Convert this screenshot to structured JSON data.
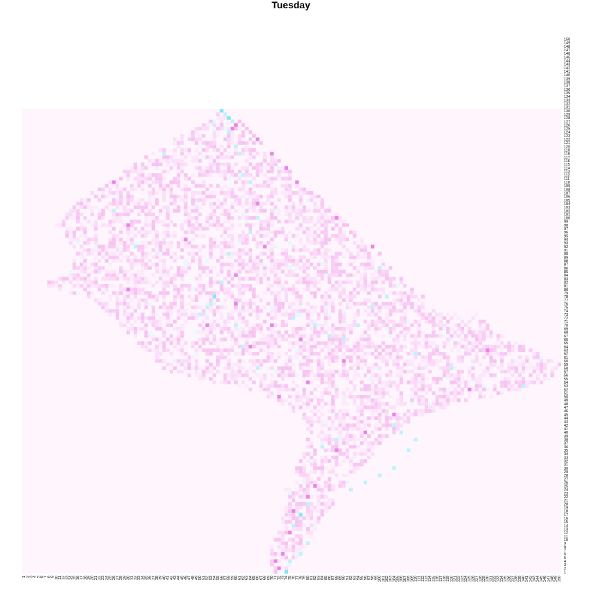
{
  "chart_data": {
    "type": "heatmap",
    "title": "Tuesday",
    "xlabel": "",
    "ylabel": "",
    "grid": false,
    "legend": false,
    "x_ticks": {
      "from": 1,
      "to": 150
    },
    "y_ticks": {
      "from": 1,
      "to": 150
    },
    "data_rows": {
      "from": 1,
      "to": 130
    },
    "colors": {
      "background": "#fff5fd",
      "low": "#fdf0fc",
      "mid": "#f6c4f0",
      "high": "#e787e6",
      "cyan": "#bff3fb",
      "cyan_strong": "#7fe9f5",
      "text": "#000000"
    },
    "shape_outline": [
      [
        56,
        130
      ],
      [
        57,
        130
      ],
      [
        57,
        129
      ],
      [
        58,
        129
      ],
      [
        63,
        125
      ],
      [
        66,
        121
      ],
      [
        70,
        118
      ],
      [
        74,
        114
      ],
      [
        76,
        112
      ],
      [
        80,
        109
      ],
      [
        84,
        106
      ],
      [
        88,
        102
      ],
      [
        92,
        98
      ],
      [
        96,
        94
      ],
      [
        98,
        91
      ],
      [
        100,
        89
      ],
      [
        103,
        86
      ],
      [
        107,
        82
      ],
      [
        109,
        80
      ],
      [
        111,
        78
      ],
      [
        113,
        76
      ],
      [
        118,
        74
      ],
      [
        124,
        74
      ],
      [
        128,
        74
      ],
      [
        130,
        71
      ],
      [
        136,
        67
      ],
      [
        140,
        65
      ],
      [
        146,
        62
      ],
      [
        152,
        59
      ],
      [
        148,
        55
      ],
      [
        142,
        53
      ],
      [
        138,
        51
      ],
      [
        130,
        50
      ],
      [
        120,
        48
      ],
      [
        112,
        45
      ],
      [
        108,
        43
      ],
      [
        104,
        40
      ],
      [
        102,
        38
      ],
      [
        100,
        36
      ],
      [
        98,
        33
      ],
      [
        95,
        30
      ],
      [
        92,
        27
      ],
      [
        90,
        24
      ],
      [
        88,
        21
      ],
      [
        86,
        18
      ],
      [
        84,
        15
      ],
      [
        82,
        12
      ],
      [
        80,
        9
      ],
      [
        78,
        6
      ],
      [
        76,
        3
      ],
      [
        74,
        0
      ],
      [
        72,
        0
      ],
      [
        70,
        4
      ],
      [
        70,
        8
      ],
      [
        72,
        12
      ],
      [
        73,
        16
      ],
      [
        74,
        20
      ],
      [
        74,
        24
      ],
      [
        76,
        28
      ],
      [
        78,
        32
      ],
      [
        80,
        36
      ],
      [
        80,
        40
      ],
      [
        78,
        44
      ],
      [
        74,
        48
      ],
      [
        70,
        50
      ],
      [
        64,
        52
      ],
      [
        56,
        54
      ],
      [
        48,
        56
      ],
      [
        40,
        58
      ],
      [
        36,
        62
      ],
      [
        32,
        66
      ],
      [
        28,
        70
      ],
      [
        24,
        74
      ],
      [
        20,
        78
      ],
      [
        12,
        80
      ],
      [
        6,
        82
      ],
      [
        10,
        84
      ],
      [
        14,
        86
      ],
      [
        16,
        90
      ],
      [
        14,
        94
      ],
      [
        10,
        98
      ],
      [
        14,
        102
      ],
      [
        18,
        106
      ],
      [
        24,
        110
      ],
      [
        30,
        114
      ],
      [
        36,
        118
      ],
      [
        42,
        122
      ],
      [
        48,
        125
      ],
      [
        52,
        127
      ],
      [
        56,
        130
      ]
    ],
    "hotspots": [
      [
        59,
        125,
        "high"
      ],
      [
        60,
        126,
        "high"
      ],
      [
        61,
        127,
        "mid"
      ],
      [
        62,
        126,
        "mid"
      ],
      [
        63,
        125,
        "mid"
      ],
      [
        64,
        124,
        "mid"
      ],
      [
        65,
        123,
        "mid"
      ],
      [
        66,
        122,
        "high"
      ],
      [
        67,
        121,
        "mid"
      ],
      [
        70,
        118,
        "high"
      ],
      [
        72,
        116,
        "mid"
      ],
      [
        74,
        114,
        "high"
      ],
      [
        75,
        113,
        "mid"
      ],
      [
        77,
        110,
        "high"
      ],
      [
        79,
        108,
        "mid"
      ],
      [
        81,
        107,
        "mid"
      ],
      [
        83,
        106,
        "mid"
      ],
      [
        86,
        102,
        "mid"
      ],
      [
        88,
        100,
        "high"
      ],
      [
        90,
        98,
        "mid"
      ],
      [
        93,
        95,
        "mid"
      ],
      [
        98,
        92,
        "high"
      ],
      [
        100,
        90,
        "mid"
      ],
      [
        103,
        86,
        "mid"
      ],
      [
        106,
        83,
        "mid"
      ],
      [
        109,
        80,
        "mid"
      ],
      [
        112,
        78,
        "mid"
      ],
      [
        118,
        72,
        "mid"
      ],
      [
        125,
        68,
        "mid"
      ],
      [
        130,
        63,
        "high"
      ],
      [
        134,
        60,
        "mid"
      ],
      [
        138,
        58,
        "mid"
      ],
      [
        142,
        56,
        "mid"
      ],
      [
        125,
        52,
        "high"
      ],
      [
        129,
        52,
        "mid"
      ],
      [
        135,
        53,
        "mid"
      ],
      [
        104,
        45,
        "high"
      ],
      [
        100,
        41,
        "mid"
      ],
      [
        96,
        40,
        "high"
      ],
      [
        92,
        39,
        "mid"
      ],
      [
        90,
        37,
        "mid"
      ],
      [
        88,
        35,
        "high"
      ],
      [
        86,
        32,
        "mid"
      ],
      [
        84,
        30,
        "mid"
      ],
      [
        86,
        27,
        "mid"
      ],
      [
        82,
        25,
        "high"
      ],
      [
        80,
        22,
        "high"
      ],
      [
        78,
        20,
        "mid"
      ],
      [
        76,
        18,
        "high"
      ],
      [
        77,
        15,
        "mid"
      ],
      [
        75,
        12,
        "high"
      ],
      [
        74,
        9,
        "mid"
      ],
      [
        73,
        6,
        "high"
      ],
      [
        71,
        4,
        "high"
      ],
      [
        72,
        2,
        "high"
      ],
      [
        78,
        10,
        "mid"
      ],
      [
        80,
        13,
        "mid"
      ],
      [
        83,
        16,
        "mid"
      ],
      [
        64,
        108,
        "mid"
      ],
      [
        66,
        104,
        "high"
      ],
      [
        70,
        100,
        "mid"
      ],
      [
        72,
        96,
        "mid"
      ],
      [
        68,
        92,
        "high"
      ],
      [
        64,
        88,
        "mid"
      ],
      [
        60,
        84,
        "high"
      ],
      [
        56,
        80,
        "mid"
      ],
      [
        60,
        76,
        "high"
      ],
      [
        66,
        74,
        "mid"
      ],
      [
        70,
        70,
        "high"
      ],
      [
        74,
        68,
        "mid"
      ],
      [
        78,
        66,
        "high"
      ],
      [
        82,
        64,
        "mid"
      ],
      [
        86,
        62,
        "mid"
      ],
      [
        90,
        60,
        "high"
      ],
      [
        94,
        58,
        "mid"
      ],
      [
        84,
        56,
        "mid"
      ],
      [
        80,
        54,
        "high"
      ],
      [
        76,
        52,
        "mid"
      ],
      [
        72,
        50,
        "high"
      ],
      [
        68,
        60,
        "mid"
      ],
      [
        64,
        64,
        "high"
      ],
      [
        60,
        66,
        "mid"
      ],
      [
        56,
        68,
        "mid"
      ],
      [
        52,
        70,
        "high"
      ],
      [
        48,
        72,
        "mid"
      ],
      [
        44,
        66,
        "mid"
      ],
      [
        40,
        64,
        "mid"
      ],
      [
        36,
        72,
        "mid"
      ],
      [
        30,
        80,
        "high"
      ],
      [
        26,
        84,
        "mid"
      ],
      [
        22,
        90,
        "mid"
      ],
      [
        26,
        94,
        "mid"
      ],
      [
        30,
        98,
        "high"
      ],
      [
        34,
        102,
        "mid"
      ],
      [
        30,
        106,
        "mid"
      ],
      [
        26,
        110,
        "high"
      ],
      [
        22,
        100,
        "mid"
      ],
      [
        18,
        96,
        "mid"
      ],
      [
        44,
        86,
        "mid"
      ],
      [
        40,
        90,
        "mid"
      ],
      [
        46,
        94,
        "high"
      ],
      [
        50,
        98,
        "mid"
      ],
      [
        54,
        104,
        "mid"
      ],
      [
        42,
        110,
        "mid"
      ],
      [
        38,
        116,
        "mid"
      ]
    ],
    "cyan_spots": [
      [
        56,
        130,
        "cyan_strong"
      ],
      [
        57,
        129,
        "cyan"
      ],
      [
        58,
        128,
        "cyan_strong"
      ],
      [
        59,
        127,
        "cyan"
      ],
      [
        58,
        124,
        "cyan"
      ],
      [
        60,
        120,
        "cyan"
      ],
      [
        61,
        118,
        "cyan"
      ],
      [
        62,
        112,
        "cyan"
      ],
      [
        64,
        110,
        "cyan"
      ],
      [
        66,
        100,
        "cyan"
      ],
      [
        64,
        96,
        "cyan"
      ],
      [
        58,
        90,
        "cyan"
      ],
      [
        56,
        82,
        "cyan"
      ],
      [
        54,
        78,
        "cyan_strong"
      ],
      [
        53,
        76,
        "cyan"
      ],
      [
        52,
        75,
        "cyan"
      ],
      [
        50,
        73,
        "cyan"
      ],
      [
        60,
        70,
        "cyan"
      ],
      [
        62,
        64,
        "cyan"
      ],
      [
        66,
        58,
        "cyan"
      ],
      [
        76,
        72,
        "cyan"
      ],
      [
        82,
        70,
        "cyan"
      ],
      [
        86,
        67,
        "cyan"
      ],
      [
        90,
        66,
        "cyan"
      ],
      [
        94,
        70,
        "cyan"
      ],
      [
        98,
        75,
        "cyan"
      ],
      [
        102,
        78,
        "cyan"
      ],
      [
        100,
        86,
        "cyan"
      ],
      [
        104,
        42,
        "cyan"
      ],
      [
        106,
        40,
        "cyan"
      ],
      [
        110,
        38,
        "cyan"
      ],
      [
        108,
        35,
        "cyan"
      ],
      [
        104,
        30,
        "cyan"
      ],
      [
        100,
        28,
        "cyan"
      ],
      [
        96,
        26,
        "cyan"
      ],
      [
        92,
        24,
        "cyan"
      ],
      [
        88,
        38,
        "cyan"
      ],
      [
        84,
        36,
        "cyan"
      ],
      [
        80,
        20,
        "cyan"
      ],
      [
        78,
        17,
        "cyan_strong"
      ],
      [
        76,
        14,
        "cyan"
      ],
      [
        80,
        9,
        "cyan"
      ],
      [
        78,
        6,
        "cyan"
      ],
      [
        75,
        4,
        "cyan"
      ],
      [
        74,
        1,
        "cyan_strong"
      ],
      [
        32,
        92,
        "cyan"
      ],
      [
        26,
        102,
        "cyan"
      ],
      [
        40,
        118,
        "cyan"
      ],
      [
        110,
        62,
        "cyan"
      ],
      [
        120,
        58,
        "cyan"
      ],
      [
        140,
        53,
        "cyan"
      ]
    ],
    "seed": 20240521
  }
}
